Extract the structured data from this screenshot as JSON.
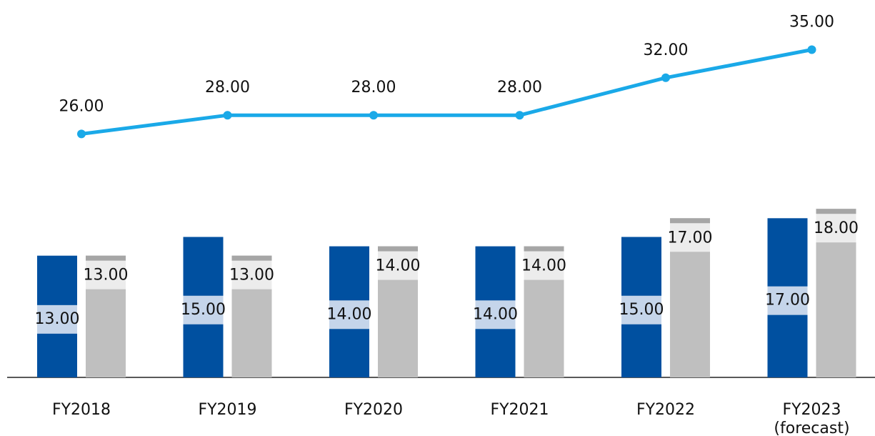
{
  "chart_data": {
    "type": "bar",
    "categories": [
      "FY2018",
      "FY2019",
      "FY2020",
      "FY2021",
      "FY2022",
      "FY2023\n(forecast)"
    ],
    "series": [
      {
        "type": "bar",
        "color": "#0050a0",
        "values": [
          13,
          15,
          14,
          14,
          15,
          17
        ]
      },
      {
        "type": "bar",
        "color": "#bfbfbf",
        "values": [
          13,
          13,
          14,
          14,
          17,
          18
        ]
      },
      {
        "type": "line",
        "color": "#1aa9e8",
        "values": [
          26,
          28,
          28,
          28,
          32,
          35
        ]
      }
    ],
    "value_labels": [
      [
        "13.00",
        "15.00",
        "14.00",
        "14.00",
        "15.00",
        "17.00"
      ],
      [
        "13.00",
        "13.00",
        "14.00",
        "14.00",
        "17.00",
        "18.00"
      ],
      [
        "26.00",
        "28.00",
        "28.00",
        "28.00",
        "32.00",
        "35.00"
      ]
    ],
    "ylim": [
      0,
      40
    ]
  }
}
